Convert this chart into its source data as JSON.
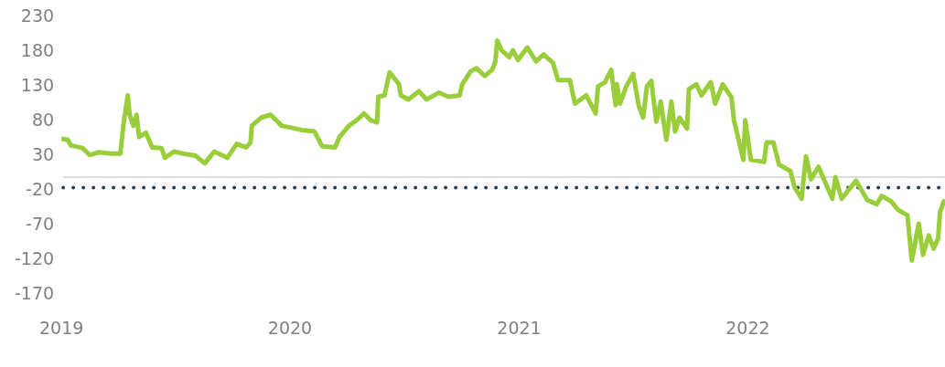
{
  "chart_data": {
    "type": "line",
    "x": [
      "2019-01-01",
      "2019-01-11",
      "2019-01-16",
      "2019-02-04",
      "2019-02-15",
      "2019-03-02",
      "2019-03-21",
      "2019-04-05",
      "2019-04-11",
      "2019-04-17",
      "2019-04-20",
      "2019-04-26",
      "2019-05-01",
      "2019-05-05",
      "2019-05-16",
      "2019-05-26",
      "2019-06-10",
      "2019-06-15",
      "2019-06-30",
      "2019-07-14",
      "2019-08-03",
      "2019-08-18",
      "2019-09-02",
      "2019-09-23",
      "2019-10-08",
      "2019-10-23",
      "2019-10-30",
      "2019-11-01",
      "2019-11-16",
      "2019-12-01",
      "2019-12-19",
      "2019-12-31",
      "2020-01-10",
      "2020-01-20",
      "2020-02-09",
      "2020-02-21",
      "2020-03-13",
      "2020-03-20",
      "2020-04-04",
      "2020-04-19",
      "2020-04-28",
      "2020-05-09",
      "2020-05-19",
      "2020-05-21",
      "2020-05-31",
      "2020-06-08",
      "2020-06-18",
      "2020-06-23",
      "2020-06-26",
      "2020-07-08",
      "2020-07-25",
      "2020-08-06",
      "2020-08-26",
      "2020-09-10",
      "2020-09-28",
      "2020-10-02",
      "2020-10-16",
      "2020-10-25",
      "2020-11-07",
      "2020-11-19",
      "2020-11-24",
      "2020-11-27",
      "2020-12-04",
      "2020-12-16",
      "2020-12-22",
      "2020-12-30",
      "2021-01-14",
      "2021-01-28",
      "2021-02-09",
      "2021-02-24",
      "2021-03-04",
      "2021-03-23",
      "2021-03-31",
      "2021-04-18",
      "2021-05-03",
      "2021-05-07",
      "2021-05-18",
      "2021-05-28",
      "2021-06-04",
      "2021-06-06",
      "2021-06-11",
      "2021-06-21",
      "2021-07-02",
      "2021-07-11",
      "2021-07-18",
      "2021-07-24",
      "2021-07-31",
      "2021-08-08",
      "2021-08-15",
      "2021-08-24",
      "2021-09-01",
      "2021-09-07",
      "2021-09-14",
      "2021-09-26",
      "2021-09-29",
      "2021-10-11",
      "2021-10-19",
      "2021-11-03",
      "2021-11-10",
      "2021-11-22",
      "2021-12-06",
      "2021-12-10",
      "2021-12-25",
      "2021-12-28",
      "2022-01-06",
      "2022-01-27",
      "2022-01-31",
      "2022-02-11",
      "2022-02-20",
      "2022-03-10",
      "2022-03-17",
      "2022-03-28",
      "2022-04-04",
      "2022-04-12",
      "2022-04-24",
      "2022-05-16",
      "2022-05-21",
      "2022-05-31",
      "2022-06-23",
      "2022-07-11",
      "2022-07-26",
      "2022-08-03",
      "2022-08-18",
      "2022-08-29",
      "2022-09-13",
      "2022-09-20",
      "2022-10-01",
      "2022-10-08",
      "2022-10-17",
      "2022-10-25",
      "2022-11-01",
      "2022-11-04",
      "2022-11-10"
    ],
    "series": [
      {
        "color": "#9acd3a",
        "values": [
          55,
          54,
          46,
          42,
          32,
          36,
          34,
          34,
          82,
          118,
          90,
          74,
          90,
          58,
          64,
          43,
          42,
          28,
          37,
          34,
          31,
          20,
          37,
          28,
          48,
          43,
          50,
          74,
          86,
          90,
          74,
          72,
          70,
          68,
          66,
          45,
          43,
          58,
          74,
          84,
          92,
          82,
          79,
          116,
          118,
          151,
          140,
          134,
          118,
          112,
          124,
          112,
          122,
          116,
          118,
          134,
          153,
          157,
          146,
          155,
          167,
          197,
          183,
          173,
          183,
          169,
          187,
          167,
          177,
          165,
          140,
          140,
          106,
          118,
          92,
          131,
          137,
          155,
          104,
          134,
          106,
          131,
          149,
          103,
          86,
          131,
          139,
          80,
          109,
          54,
          109,
          66,
          86,
          70,
          127,
          134,
          118,
          137,
          106,
          134,
          115,
          82,
          25,
          82,
          25,
          22,
          50,
          50,
          18,
          9,
          -15,
          -31,
          30,
          -3,
          15,
          -31,
          0,
          -31,
          -5,
          -33,
          -39,
          -27,
          -35,
          -47,
          -55,
          -120,
          -67,
          -112,
          -84,
          -103,
          -88,
          -51,
          -35
        ]
      }
    ],
    "xlim": [
      "2019-01-01",
      "2022-11-12"
    ],
    "xticks": [
      "2019",
      "2020",
      "2021",
      "2022"
    ],
    "ylim": [
      -170,
      230
    ],
    "yticks": [
      -170,
      -120,
      -70,
      -20,
      30,
      80,
      130,
      180,
      230
    ],
    "ref_lines": [
      {
        "axis": "y",
        "value": 0,
        "color": "#dddddd",
        "line_style": "solid"
      },
      {
        "axis": "y",
        "value": -15,
        "color": "#253f55",
        "line_style": "dotted"
      }
    ],
    "grid": false,
    "legend": false,
    "marker": "none",
    "line_style": "solid"
  }
}
